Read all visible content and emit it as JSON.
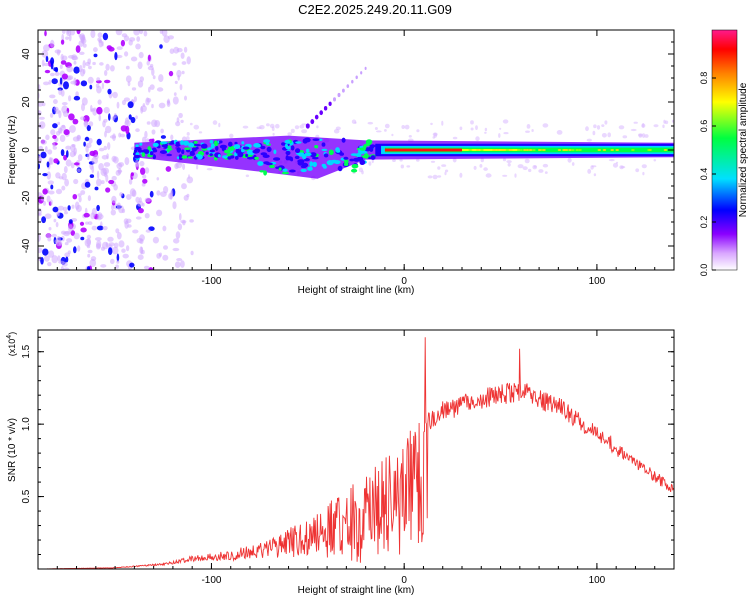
{
  "title": "C2E2.2025.249.20.11.G09",
  "chart_data": [
    {
      "type": "heatmap",
      "name": "spectrogram",
      "xlabel": "Height of straight line (km)",
      "ylabel": "Frequency (Hz)",
      "xlim": [
        -190,
        140
      ],
      "ylim": [
        -50,
        50
      ],
      "xticks": [
        -100,
        0,
        100
      ],
      "yticks": [
        -40,
        -20,
        0,
        20,
        40
      ],
      "colorbar": {
        "label": "Normalized spectral amplitude",
        "range": [
          0,
          1
        ],
        "ticks": [
          "0.0",
          "0.2",
          "0.4",
          "0.6",
          "0.8"
        ],
        "tick_values": [
          0.0,
          0.2,
          0.4,
          0.6,
          0.8
        ],
        "colors": [
          "#ffffff",
          "#b000ff",
          "#0000ff",
          "#00e0ff",
          "#00ff40",
          "#ffff00",
          "#ff8000",
          "#ff0000",
          "#ff1a8c"
        ]
      },
      "features": {
        "noise_region_x": [
          -190,
          -118
        ],
        "signal_band_center_hz": 0,
        "signal_band_start_x": -140,
        "strong_peak_x": [
          -10,
          30
        ],
        "branch": {
          "from": [
            -50,
            10
          ],
          "to": [
            -20,
            34
          ]
        }
      }
    },
    {
      "type": "line",
      "name": "snr",
      "xlabel": "Height of straight line (km)",
      "ylabel": "SNR (10 * v/v)",
      "scale_label": "(x10",
      "scale_exp": "4",
      "xlim": [
        -190,
        140
      ],
      "ylim": [
        0,
        1.65
      ],
      "xticks": [
        -100,
        0,
        100
      ],
      "yticks": [
        0.5,
        1.0,
        1.5
      ],
      "ytick_labels": [
        "0.5",
        "1.0",
        "1.5"
      ],
      "color": "#ee3333",
      "envelope": {
        "x": [
          -190,
          -150,
          -125,
          -110,
          -90,
          -70,
          -50,
          -30,
          -15,
          0,
          10,
          20,
          40,
          60,
          80,
          100,
          120,
          140
        ],
        "y": [
          0.0,
          0.01,
          0.04,
          0.09,
          0.13,
          0.2,
          0.36,
          0.55,
          0.72,
          0.95,
          1.05,
          1.16,
          1.25,
          1.3,
          1.2,
          1.0,
          0.78,
          0.58
        ]
      },
      "spikes": [
        {
          "x": 11,
          "y": 1.6
        },
        {
          "x": 12,
          "y": 0.35
        },
        {
          "x": 60,
          "y": 1.52
        }
      ]
    }
  ]
}
